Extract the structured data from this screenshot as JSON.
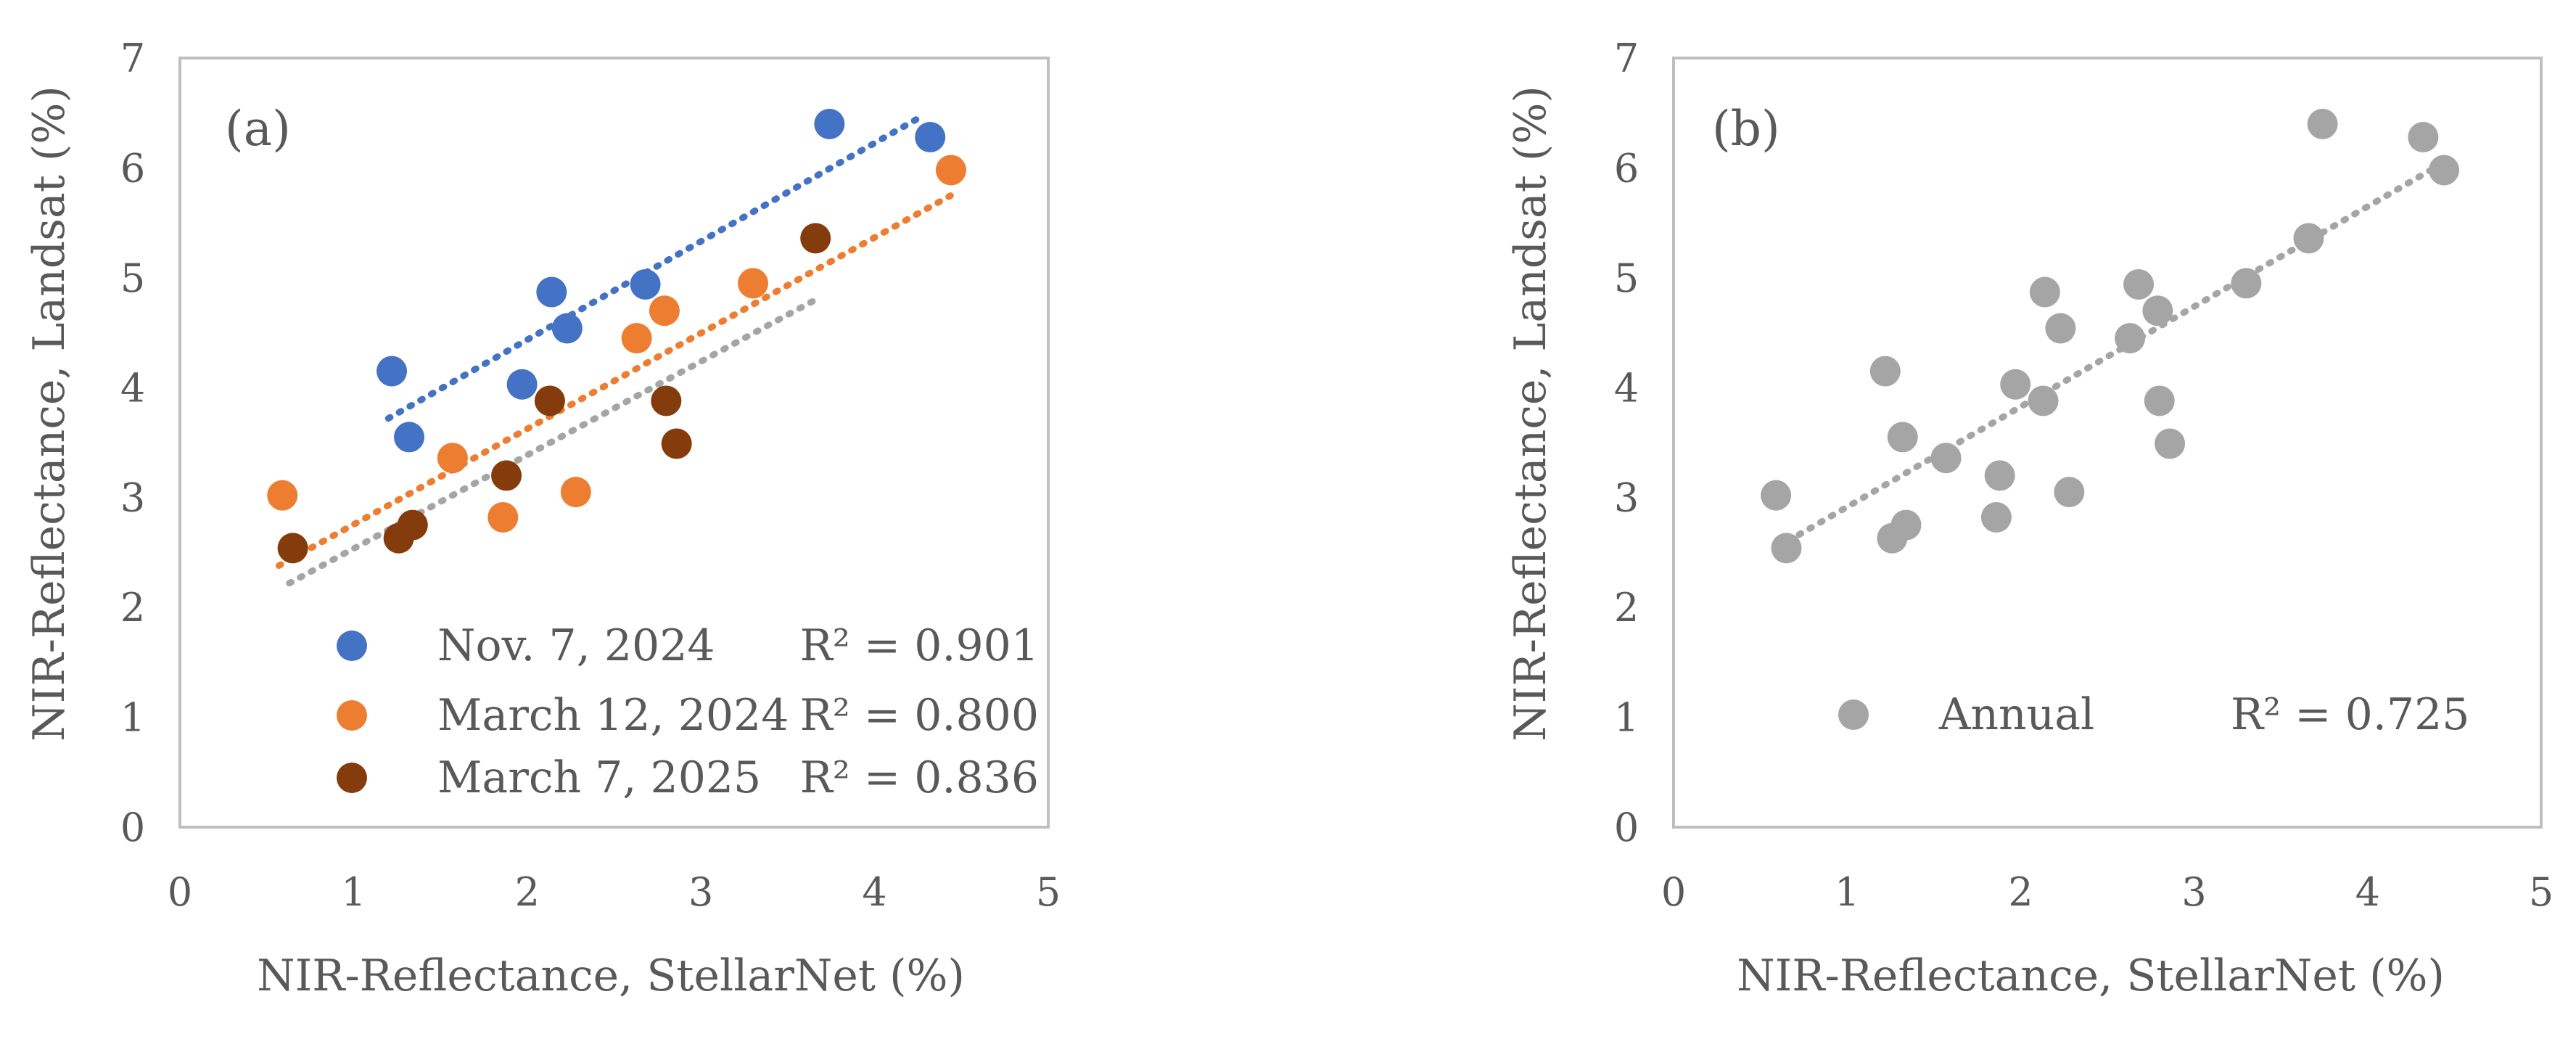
{
  "chart_data": [
    {
      "type": "scatter",
      "panel_label": "(a)",
      "xlabel": "NIR-Reflectance, StellarNet (%)",
      "ylabel": "NIR-Reflectance, Landsat (%)",
      "xlim": [
        0,
        5
      ],
      "ylim": [
        0,
        7
      ],
      "xticks": [
        "0",
        "1",
        "2",
        "3",
        "4",
        "5"
      ],
      "yticks": [
        "0",
        "1",
        "2",
        "3",
        "4",
        "5",
        "6",
        "7"
      ],
      "legend_position": "bottom",
      "series": [
        {
          "name": "Nov. 7, 2024",
          "r2_label": "R² = 0.901",
          "color": "#4472C4",
          "points": [
            [
              1.22,
              4.15
            ],
            [
              1.32,
              3.55
            ],
            [
              1.97,
              4.03
            ],
            [
              2.14,
              4.87
            ],
            [
              2.23,
              4.54
            ],
            [
              2.68,
              4.94
            ],
            [
              3.74,
              6.4
            ],
            [
              4.32,
              6.28
            ]
          ],
          "trendline": {
            "x": [
              1.2,
              4.25
            ],
            "y": [
              3.72,
              6.45
            ]
          }
        },
        {
          "name": "March 12, 2024",
          "r2_label": "R² = 0.800",
          "color": "#ED7D31",
          "points": [
            [
              0.59,
              3.02
            ],
            [
              1.57,
              3.36
            ],
            [
              1.86,
              2.82
            ],
            [
              2.28,
              3.05
            ],
            [
              2.63,
              4.45
            ],
            [
              2.79,
              4.7
            ],
            [
              3.3,
              4.95
            ],
            [
              4.44,
              5.98
            ]
          ],
          "trendline": {
            "x": [
              0.57,
              4.44
            ],
            "y": [
              2.38,
              5.75
            ]
          }
        },
        {
          "name": "March 7, 2025",
          "r2_label": "R² = 0.836",
          "color": "#843C0C",
          "points": [
            [
              0.65,
              2.54
            ],
            [
              1.26,
              2.63
            ],
            [
              1.34,
              2.75
            ],
            [
              1.88,
              3.2
            ],
            [
              2.13,
              3.88
            ],
            [
              2.8,
              3.88
            ],
            [
              2.86,
              3.49
            ],
            [
              3.66,
              5.36
            ]
          ],
          "trendline": {
            "x": [
              0.63,
              3.66
            ],
            "y": [
              2.22,
              4.8
            ]
          },
          "trendline_color": "#A5A5A5"
        }
      ]
    },
    {
      "type": "scatter",
      "panel_label": "(b)",
      "xlabel": "NIR-Reflectance, StellarNet (%)",
      "ylabel": "NIR-Reflectance, Landsat (%)",
      "xlim": [
        0,
        5
      ],
      "ylim": [
        0,
        7
      ],
      "xticks": [
        "0",
        "1",
        "2",
        "3",
        "4",
        "5"
      ],
      "yticks": [
        "0",
        "1",
        "2",
        "3",
        "4",
        "5",
        "6",
        "7"
      ],
      "legend_position": "bottom",
      "series": [
        {
          "name": "Annual",
          "r2_label": "R² = 0.725",
          "color": "#A5A5A5",
          "points": [
            [
              1.22,
              4.15
            ],
            [
              1.32,
              3.55
            ],
            [
              1.97,
              4.03
            ],
            [
              2.14,
              4.87
            ],
            [
              2.23,
              4.54
            ],
            [
              2.68,
              4.94
            ],
            [
              3.74,
              6.4
            ],
            [
              4.32,
              6.28
            ],
            [
              0.59,
              3.02
            ],
            [
              1.57,
              3.36
            ],
            [
              1.86,
              2.82
            ],
            [
              2.28,
              3.05
            ],
            [
              2.63,
              4.45
            ],
            [
              2.79,
              4.7
            ],
            [
              3.3,
              4.95
            ],
            [
              4.44,
              5.98
            ],
            [
              0.65,
              2.54
            ],
            [
              1.26,
              2.63
            ],
            [
              1.34,
              2.75
            ],
            [
              1.88,
              3.2
            ],
            [
              2.13,
              3.88
            ],
            [
              2.8,
              3.88
            ],
            [
              2.86,
              3.49
            ],
            [
              3.66,
              5.36
            ]
          ],
          "trendline": {
            "x": [
              0.6,
              4.44
            ],
            "y": [
              2.55,
              6.05
            ]
          }
        }
      ]
    }
  ]
}
